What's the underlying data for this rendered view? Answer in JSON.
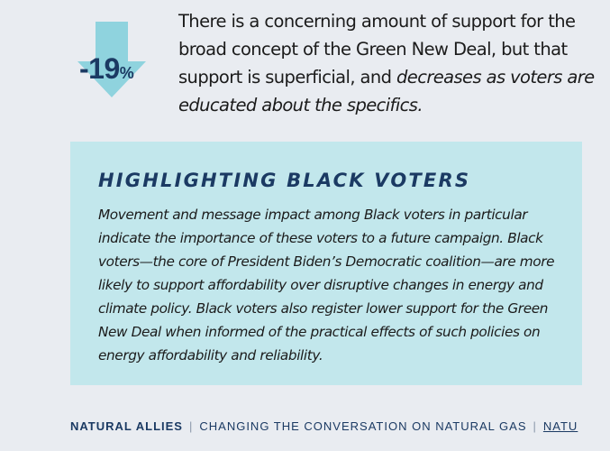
{
  "stat": {
    "value": "-19",
    "unit": "%",
    "arrow_color": "#8fd3de",
    "icon": "down-arrow-icon"
  },
  "intro": {
    "part1": "There is a concerning amount of support for the broad concept of the Green New Deal, but that support is superficial, and ",
    "emphasis": "decreases as voters are educated about the specifics."
  },
  "callout": {
    "title": "HIGHLIGHTING BLACK VOTERS",
    "body": "Movement and message impact among Black voters in particular indicate the importance of these voters to a future campaign. Black voters—the core of President Biden’s Democratic coalition—are more likely to support affordability over disruptive changes in energy and climate policy. Black voters also register lower support for the Green New Deal when informed of the practical effects of such policies on energy affordability and reliability.",
    "background": "#c2e7ec"
  },
  "footer": {
    "brand": "NATURAL ALLIES",
    "separator": "|",
    "subtitle": "CHANGING THE CONVERSATION ON NATURAL GAS",
    "link_partial": "NATU"
  },
  "colors": {
    "page_bg": "#e9ecf1",
    "navy": "#1b3a63"
  }
}
